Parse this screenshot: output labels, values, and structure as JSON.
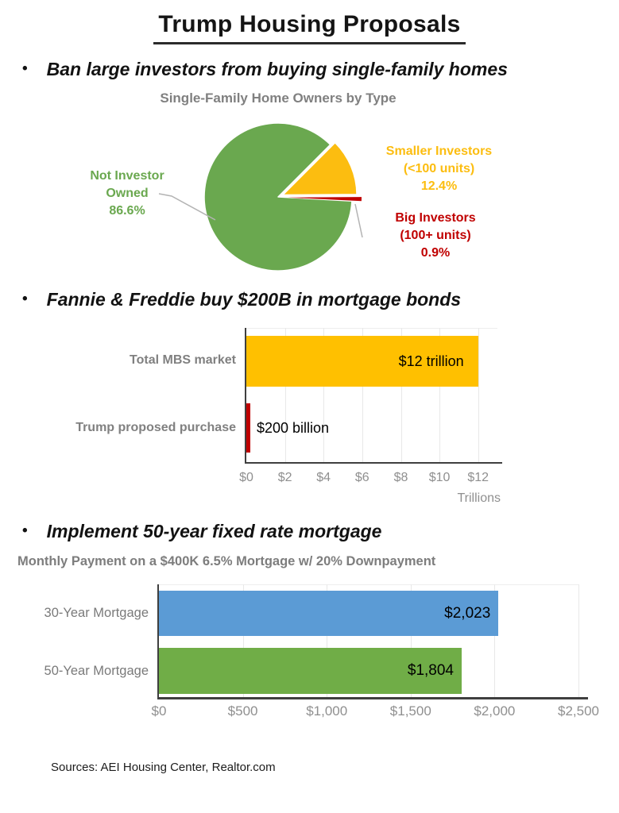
{
  "page_title": "Trump Housing Proposals",
  "bullets": [
    {
      "marker": "•",
      "text": "Ban large investors from buying single-family homes"
    },
    {
      "marker": "•",
      "text": "Fannie & Freddie buy $200B in mortgage bonds"
    },
    {
      "marker": "•",
      "text": "Implement 50-year fixed rate mortgage"
    }
  ],
  "footer": "Sources: AEI Housing Center, Realtor.com",
  "chart_data": [
    {
      "type": "pie",
      "title": "Single-Family Home Owners by Type",
      "start_angle_deg": 93.2,
      "direction": "clockwise",
      "slices": [
        {
          "name": "Not Investor Owned",
          "value_pct": 86.6,
          "color": "#6aa84f",
          "label_lines": [
            "Not Investor",
            "Owned",
            "86.6%"
          ]
        },
        {
          "name": "Smaller Investors (<100 units)",
          "value_pct": 12.4,
          "color": "#fcbd10",
          "label_lines": [
            "Smaller Investors",
            "(<100 units)",
            "12.4%"
          ]
        },
        {
          "name": "Big Investors (100+ units)",
          "value_pct": 0.9,
          "color": "#c00000",
          "label_lines": [
            "Big Investors",
            "(100+ units)",
            "0.9%"
          ]
        }
      ]
    },
    {
      "type": "bar",
      "orientation": "horizontal",
      "categories": [
        "Total MBS market",
        "Trump proposed purchase"
      ],
      "values": [
        12,
        0.2
      ],
      "value_labels": [
        "$12 trillion",
        "$200 billion"
      ],
      "colors": [
        "#ffc000",
        "#c00000"
      ],
      "xlim": [
        0,
        13
      ],
      "xticks": [
        "$0",
        "$2",
        "$4",
        "$6",
        "$8",
        "$10",
        "$12"
      ],
      "xtick_values": [
        0,
        2,
        4,
        6,
        8,
        10,
        12
      ],
      "x_unit_label": "Trillions",
      "grid": true,
      "legend": "none"
    },
    {
      "type": "bar",
      "orientation": "horizontal",
      "title": "Monthly Payment on a $400K 6.5% Mortgage w/ 20% Downpayment",
      "categories": [
        "30-Year Mortgage",
        "50-Year Mortgage"
      ],
      "values": [
        2023,
        1804
      ],
      "value_labels": [
        "$2,023",
        "$1,804"
      ],
      "colors": [
        "#5b9bd5",
        "#70ad47"
      ],
      "xlim": [
        0,
        2500
      ],
      "xticks": [
        "$0",
        "$500",
        "$1,000",
        "$1,500",
        "$2,000",
        "$2,500"
      ],
      "xtick_values": [
        0,
        500,
        1000,
        1500,
        2000,
        2500
      ],
      "grid": true,
      "legend": "none"
    }
  ]
}
